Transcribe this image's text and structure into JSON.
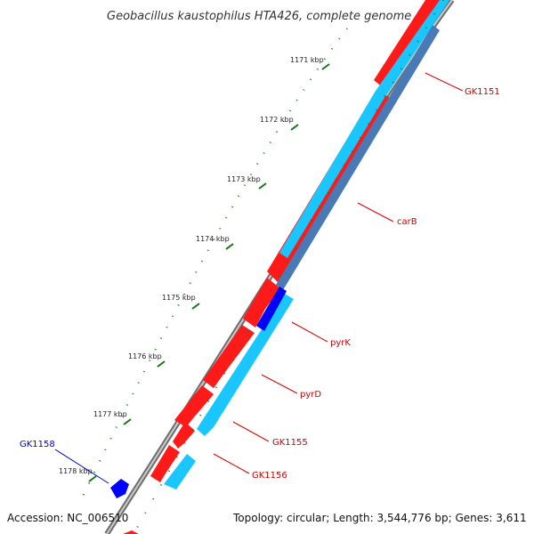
{
  "title": "Geobacillus kaustophilus HTA426, complete genome",
  "footer": {
    "accession": "Accession: NC_006510",
    "topology": "Topology: circular; Length: 3,544,776 bp; Genes: 3,611"
  },
  "ticks": [
    "1171 kbp",
    "1172 kbp",
    "1173 kbp",
    "1174 kbp",
    "1175 kbp",
    "1176 kbp",
    "1177 kbp",
    "1178 kbp"
  ],
  "gene_labels": [
    "GK1151",
    "carB",
    "pyrK",
    "pyrD",
    "GK1155",
    "GK1156",
    "GK1158"
  ],
  "colors": {
    "forward_gene": "#ff0000",
    "reverse_gene": "#00ccff",
    "dark_blue_gene": "#0000ff",
    "steel_blue": "#4a7ab5",
    "backbone": "#888888",
    "ticks": "#117711",
    "label_red": "#cc0000",
    "label_blue": "#0000cc"
  }
}
